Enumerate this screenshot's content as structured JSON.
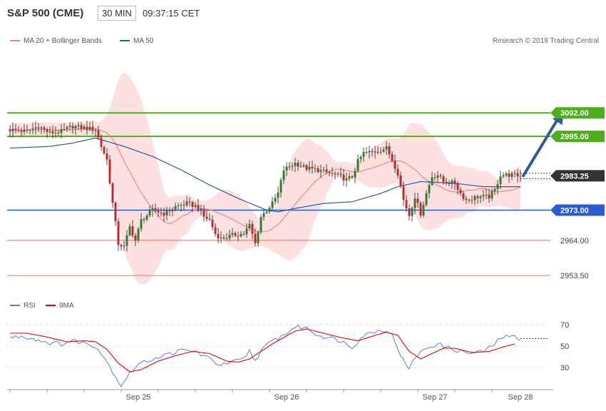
{
  "header": {
    "title": "S&P 500 (CME)",
    "timeframe": "30 MIN",
    "time": "09:37:15 CET"
  },
  "legend": {
    "bollinger": "MA 20 + Bollinger Bands",
    "ma50": "MA 50",
    "credit": "Research © 2019 Trading Central"
  },
  "rsi_legend": {
    "rsi": "RSI",
    "ma9": "9MA"
  },
  "colors": {
    "up": "#2e7d32",
    "down": "#c62828",
    "band_fill": "#fde0e0",
    "ma20": "#f08080",
    "ma50": "#2c5d99",
    "green_level": "#4caf1a",
    "blue_level": "#2a5bd7",
    "red_level": "#e57373",
    "arrow": "#2c5d99",
    "rsi": "#5b7fd4",
    "rsi_ma": "#e60000"
  },
  "chart_data": [
    {
      "type": "candlestick",
      "title": "S&P 500 (CME)",
      "ylim": [
        2948,
        3008
      ],
      "x_labels": [
        "Sep 25",
        "Sep 26",
        "Sep 27",
        "Sep 28"
      ],
      "x_label_index": [
        45,
        97,
        149,
        179
      ],
      "n_bars": 180,
      "levels": [
        {
          "value": 3002.0,
          "label": "3002.00",
          "style": "green"
        },
        {
          "value": 2995.0,
          "label": "2995.00",
          "style": "green"
        },
        {
          "value": 2983.25,
          "label": "2983.25",
          "style": "current"
        },
        {
          "value": 2973.0,
          "label": "2973.00",
          "style": "blue"
        },
        {
          "value": 2964.0,
          "label": "2964.00",
          "style": "red"
        },
        {
          "value": 2953.5,
          "label": "2953.50",
          "style": "red"
        }
      ],
      "anchors": [
        [
          0,
          2997.0
        ],
        [
          6,
          2996.5
        ],
        [
          10,
          2998.0
        ],
        [
          14,
          2996.0
        ],
        [
          18,
          2996.5
        ],
        [
          22,
          2998.0
        ],
        [
          26,
          2997.5
        ],
        [
          30,
          2997.0
        ],
        [
          32,
          2992.0
        ],
        [
          34,
          2988.0
        ],
        [
          36,
          2975.0
        ],
        [
          38,
          2963.0
        ],
        [
          40,
          2962.0
        ],
        [
          42,
          2968.0
        ],
        [
          44,
          2964.0
        ],
        [
          46,
          2970.0
        ],
        [
          50,
          2973.0
        ],
        [
          54,
          2972.0
        ],
        [
          58,
          2974.0
        ],
        [
          62,
          2975.0
        ],
        [
          66,
          2974.0
        ],
        [
          68,
          2971.0
        ],
        [
          70,
          2970.0
        ],
        [
          72,
          2966.0
        ],
        [
          74,
          2964.5
        ],
        [
          78,
          2965.5
        ],
        [
          82,
          2966.0
        ],
        [
          84,
          2968.5
        ],
        [
          86,
          2963.0
        ],
        [
          88,
          2971.0
        ],
        [
          92,
          2975.0
        ],
        [
          94,
          2978.0
        ],
        [
          96,
          2985.0
        ],
        [
          100,
          2987.0
        ],
        [
          104,
          2985.5
        ],
        [
          108,
          2985.0
        ],
        [
          112,
          2984.0
        ],
        [
          116,
          2983.0
        ],
        [
          118,
          2982.0
        ],
        [
          120,
          2983.0
        ],
        [
          122,
          2987.5
        ],
        [
          124,
          2990.0
        ],
        [
          128,
          2990.5
        ],
        [
          132,
          2991.5
        ],
        [
          134,
          2988.0
        ],
        [
          136,
          2984.0
        ],
        [
          138,
          2976.0
        ],
        [
          140,
          2971.5
        ],
        [
          142,
          2977.0
        ],
        [
          144,
          2972.0
        ],
        [
          146,
          2978.0
        ],
        [
          148,
          2983.0
        ],
        [
          150,
          2983.5
        ],
        [
          152,
          2981.5
        ],
        [
          156,
          2981.0
        ],
        [
          158,
          2978.0
        ],
        [
          160,
          2976.0
        ],
        [
          164,
          2977.0
        ],
        [
          168,
          2977.0
        ],
        [
          170,
          2979.0
        ],
        [
          172,
          2983.5
        ],
        [
          176,
          2983.5
        ],
        [
          179,
          2983.25
        ]
      ],
      "ma50_anchors": [
        [
          0,
          2991.5
        ],
        [
          14,
          2992.0
        ],
        [
          22,
          2993.0
        ],
        [
          30,
          2994.5
        ],
        [
          40,
          2992.0
        ],
        [
          50,
          2989.0
        ],
        [
          60,
          2985.0
        ],
        [
          70,
          2980.5
        ],
        [
          80,
          2976.5
        ],
        [
          90,
          2973.0
        ],
        [
          94,
          2972.5
        ],
        [
          100,
          2973.5
        ],
        [
          110,
          2975.0
        ],
        [
          120,
          2975.5
        ],
        [
          130,
          2978.0
        ],
        [
          136,
          2980.0
        ],
        [
          144,
          2981.5
        ],
        [
          156,
          2981.0
        ],
        [
          166,
          2980.0
        ],
        [
          179,
          2980.0
        ]
      ],
      "projection": {
        "from": [
          179,
          2983.25
        ],
        "to": [
          194,
          3002.0
        ]
      },
      "current_price": "2983.25"
    },
    {
      "type": "line",
      "title": "RSI",
      "ylim": [
        10,
        80
      ],
      "yticks": [
        30,
        50,
        70
      ],
      "series": [
        {
          "name": "RSI",
          "anchors": [
            [
              0,
              58
            ],
            [
              4,
              59
            ],
            [
              8,
              57
            ],
            [
              14,
              53
            ],
            [
              18,
              52
            ],
            [
              22,
              55
            ],
            [
              26,
              53
            ],
            [
              30,
              50
            ],
            [
              33,
              40
            ],
            [
              36,
              26
            ],
            [
              39,
              13
            ],
            [
              42,
              25
            ],
            [
              45,
              33
            ],
            [
              50,
              38
            ],
            [
              55,
              42
            ],
            [
              60,
              46
            ],
            [
              65,
              45
            ],
            [
              70,
              38
            ],
            [
              74,
              32
            ],
            [
              78,
              35
            ],
            [
              82,
              38
            ],
            [
              84,
              46
            ],
            [
              86,
              36
            ],
            [
              88,
              46
            ],
            [
              92,
              55
            ],
            [
              96,
              60
            ],
            [
              100,
              68
            ],
            [
              104,
              67
            ],
            [
              108,
              60
            ],
            [
              112,
              58
            ],
            [
              116,
              55
            ],
            [
              120,
              49
            ],
            [
              124,
              60
            ],
            [
              128,
              64
            ],
            [
              132,
              65
            ],
            [
              134,
              60
            ],
            [
              136,
              48
            ],
            [
              138,
              36
            ],
            [
              140,
              28
            ],
            [
              142,
              40
            ],
            [
              146,
              48
            ],
            [
              150,
              52
            ],
            [
              154,
              48
            ],
            [
              158,
              45
            ],
            [
              162,
              43
            ],
            [
              166,
              45
            ],
            [
              170,
              52
            ],
            [
              172,
              58
            ],
            [
              176,
              59
            ],
            [
              179,
              57
            ]
          ]
        },
        {
          "name": "9MA",
          "anchors": [
            [
              0,
              62
            ],
            [
              6,
              62
            ],
            [
              12,
              59
            ],
            [
              20,
              54
            ],
            [
              26,
              55
            ],
            [
              30,
              54
            ],
            [
              34,
              47
            ],
            [
              38,
              34
            ],
            [
              42,
              26
            ],
            [
              46,
              28
            ],
            [
              52,
              36
            ],
            [
              58,
              41
            ],
            [
              64,
              45
            ],
            [
              70,
              43
            ],
            [
              76,
              36
            ],
            [
              80,
              35
            ],
            [
              84,
              38
            ],
            [
              88,
              45
            ],
            [
              92,
              52
            ],
            [
              96,
              58
            ],
            [
              100,
              64
            ],
            [
              104,
              66
            ],
            [
              110,
              62
            ],
            [
              116,
              58
            ],
            [
              122,
              55
            ],
            [
              128,
              60
            ],
            [
              132,
              63
            ],
            [
              136,
              60
            ],
            [
              140,
              45
            ],
            [
              144,
              38
            ],
            [
              148,
              43
            ],
            [
              152,
              48
            ],
            [
              156,
              48
            ],
            [
              162,
              44
            ],
            [
              168,
              45
            ],
            [
              174,
              50
            ],
            [
              177,
              52
            ]
          ]
        }
      ]
    }
  ]
}
